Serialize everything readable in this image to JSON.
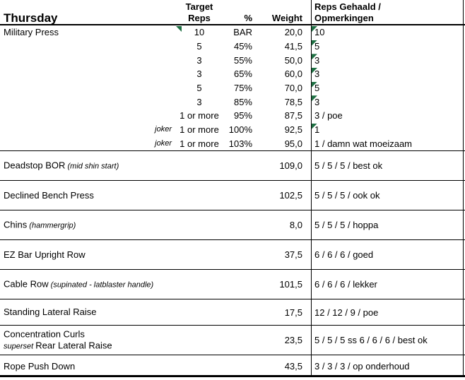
{
  "header": {
    "day": "Thursday",
    "target_col_line1": "Target",
    "target_col_line2": "Reps",
    "pct_col": "%",
    "weight_col": "Weight",
    "result_col_line1": "Reps Gehaald /",
    "result_col_line2": "Opmerkingen"
  },
  "colors": {
    "comment_triangle": "#1e7043",
    "grid_line": "#000000"
  },
  "main_exercise": {
    "name": "Military Press",
    "name_has_comment_flag": true,
    "sets": [
      {
        "joker": "",
        "reps": "10",
        "pct": "BAR",
        "weight": "20,0",
        "result": "10",
        "result_flag": true
      },
      {
        "joker": "",
        "reps": "5",
        "pct": "45%",
        "weight": "41,5",
        "result": "5",
        "result_flag": true
      },
      {
        "joker": "",
        "reps": "3",
        "pct": "55%",
        "weight": "50,0",
        "result": "3",
        "result_flag": true
      },
      {
        "joker": "",
        "reps": "3",
        "pct": "65%",
        "weight": "60,0",
        "result": "3",
        "result_flag": true
      },
      {
        "joker": "",
        "reps": "5",
        "pct": "75%",
        "weight": "70,0",
        "result": "5",
        "result_flag": true
      },
      {
        "joker": "",
        "reps": "3",
        "pct": "85%",
        "weight": "78,5",
        "result": "3",
        "result_flag": true
      },
      {
        "joker": "",
        "reps": "1 or more",
        "pct": "95%",
        "weight": "87,5",
        "result": "3 / poe",
        "result_flag": false
      },
      {
        "joker": "joker",
        "reps": "1 or more",
        "pct": "100%",
        "weight": "92,5",
        "result": "1",
        "result_flag": true
      },
      {
        "joker": "joker",
        "reps": "1 or more",
        "pct": "103%",
        "weight": "95,0",
        "result": "1 / damn wat moeizaam",
        "result_flag": false
      }
    ]
  },
  "accessories": [
    {
      "name": "Deadstop BOR",
      "note": "(mid shin start)",
      "weight": "109,0",
      "result": "5 / 5 / 5 / best ok"
    },
    {
      "name": "Declined Bench Press",
      "note": "",
      "weight": "102,5",
      "result": "5 / 5 / 5 / ook ok"
    },
    {
      "name": "Chins",
      "note": "(hammergrip)",
      "weight": "8,0",
      "result": "5 / 5 / 5 / hoppa"
    },
    {
      "name": "EZ Bar Upright Row",
      "note": "",
      "weight": "37,5",
      "result": "6 / 6 / 6 / goed"
    },
    {
      "name": "Cable Row",
      "note": "(supinated - latblaster handle)",
      "weight": "101,5",
      "result": "6 / 6 / 6 / lekker"
    },
    {
      "name": "Standing Lateral Raise",
      "note": "",
      "weight": "17,5",
      "result": "12 / 12 / 9 / poe"
    },
    {
      "name": "Concentration Curls",
      "note": "",
      "line2_prefix": "superset",
      "line2": "Rear Lateral Raise",
      "weight": "23,5",
      "result": "5 / 5 / 5 ss 6 / 6 / 6 / best ok"
    },
    {
      "name": "Rope Push Down",
      "note": "",
      "weight": "43,5",
      "result": "3 / 3 / 3 / op onderhoud"
    }
  ]
}
